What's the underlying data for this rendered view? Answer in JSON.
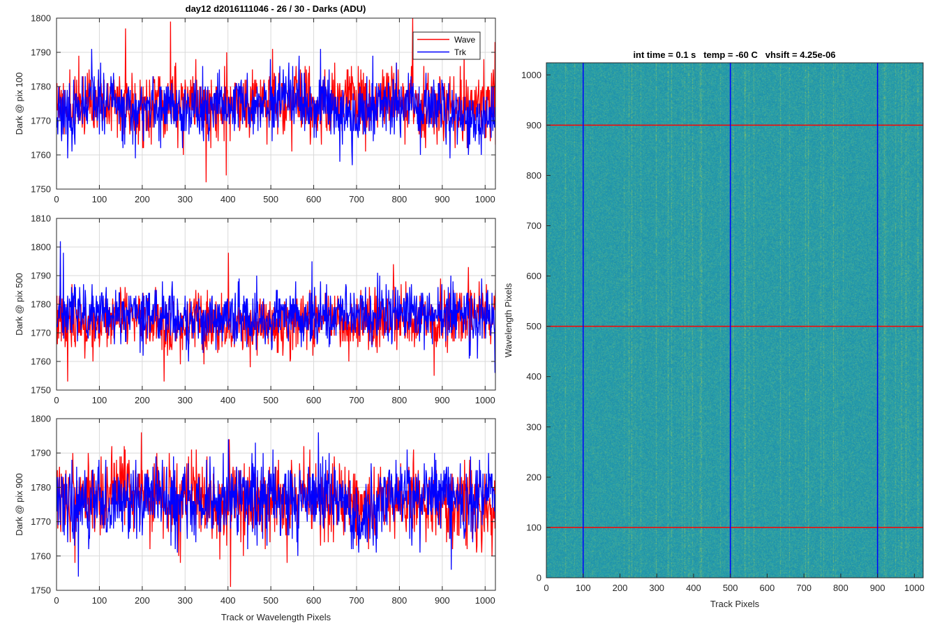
{
  "figure_title": "day12 d2016111046 - 26 / 30 - Darks (ADU)",
  "colors": {
    "wave": "#ff0000",
    "trk": "#0000ff",
    "grid": "#d9d9d9",
    "axis": "#262626",
    "image_base": "#1f9ca8"
  },
  "chart_data": [
    {
      "type": "line",
      "id": "pix100",
      "title": "day12 d2016111046 - 26 / 30 - Darks (ADU)",
      "xlabel": "",
      "ylabel": "Dark @ pix 100",
      "xlim": [
        0,
        1024
      ],
      "ylim": [
        1750,
        1800
      ],
      "xticks": [
        0,
        100,
        200,
        300,
        400,
        500,
        600,
        700,
        800,
        900,
        1000
      ],
      "yticks": [
        1750,
        1760,
        1770,
        1780,
        1790,
        1800
      ],
      "grid": true,
      "legend": {
        "position": "top-right",
        "entries": [
          "Wave",
          "Trk"
        ]
      },
      "series": [
        {
          "name": "Wave",
          "color": "#ff0000",
          "n": 1024,
          "mean": 1775,
          "std": 5,
          "min": 1752,
          "max": 1800,
          "seed": 11,
          "peaks": [
            [
              348,
              1752
            ],
            [
              395,
              1754
            ],
            [
              830,
              1800
            ],
            [
              265,
              1799
            ],
            [
              160,
              1797
            ],
            [
              1022,
              1793
            ]
          ]
        },
        {
          "name": "Trk",
          "color": "#0000ff",
          "n": 1024,
          "mean": 1773,
          "std": 4.5,
          "min": 1756,
          "max": 1792,
          "seed": 23,
          "peaks": [
            [
              615,
              1791
            ],
            [
              565,
              1789
            ],
            [
              660,
              1758
            ],
            [
              960,
              1760
            ],
            [
              848,
              1760
            ],
            [
              1018,
              1780
            ]
          ]
        }
      ]
    },
    {
      "type": "line",
      "id": "pix500",
      "xlabel": "",
      "ylabel": "Dark @ pix 500",
      "xlim": [
        0,
        1024
      ],
      "ylim": [
        1750,
        1810
      ],
      "xticks": [
        0,
        100,
        200,
        300,
        400,
        500,
        600,
        700,
        800,
        900,
        1000
      ],
      "yticks": [
        1750,
        1760,
        1770,
        1780,
        1790,
        1800,
        1810
      ],
      "grid": true,
      "series": [
        {
          "name": "Wave",
          "color": "#ff0000",
          "n": 1024,
          "mean": 1774,
          "std": 5,
          "min": 1753,
          "max": 1798,
          "seed": 37,
          "peaks": [
            [
              25,
              1753
            ],
            [
              250,
              1753
            ],
            [
              400,
              1798
            ],
            [
              880,
              1755
            ],
            [
              785,
              1794
            ]
          ]
        },
        {
          "name": "Trk",
          "color": "#0000ff",
          "n": 1024,
          "mean": 1776,
          "std": 5,
          "min": 1756,
          "max": 1802,
          "seed": 51,
          "peaks": [
            [
              8,
              1802
            ],
            [
              15,
              1798
            ],
            [
              595,
              1795
            ],
            [
              1022,
              1756
            ]
          ]
        }
      ]
    },
    {
      "type": "line",
      "id": "pix900",
      "xlabel": "Track or Wavelength Pixels",
      "ylabel": "Dark @ pix 900",
      "xlim": [
        0,
        1024
      ],
      "ylim": [
        1750,
        1800
      ],
      "xticks": [
        0,
        100,
        200,
        300,
        400,
        500,
        600,
        700,
        800,
        900,
        1000
      ],
      "yticks": [
        1750,
        1760,
        1770,
        1780,
        1790,
        1800
      ],
      "grid": true,
      "series": [
        {
          "name": "Wave",
          "color": "#ff0000",
          "n": 1024,
          "mean": 1776,
          "std": 5.5,
          "min": 1751,
          "max": 1796,
          "seed": 67,
          "peaks": [
            [
              405,
              1751
            ],
            [
              402,
              1794
            ],
            [
              197,
              1796
            ],
            [
              42,
              1758
            ]
          ]
        },
        {
          "name": "Trk",
          "color": "#0000ff",
          "n": 1024,
          "mean": 1776,
          "std": 5.5,
          "min": 1754,
          "max": 1796,
          "seed": 79,
          "peaks": [
            [
              400,
              1794
            ],
            [
              610,
              1796
            ],
            [
              50,
              1754
            ]
          ]
        }
      ]
    },
    {
      "type": "heatmap",
      "id": "dark-frame",
      "title": "int time = 0.1 s   temp = -60 C   vhsift = 4.25e-06",
      "xlabel": "Track Pixels",
      "ylabel": "Wavelength Pixels",
      "xlim": [
        0,
        1024
      ],
      "ylim": [
        0,
        1024
      ],
      "xticks": [
        0,
        100,
        200,
        300,
        400,
        500,
        600,
        700,
        800,
        900,
        1000
      ],
      "yticks": [
        0,
        100,
        200,
        300,
        400,
        500,
        600,
        700,
        800,
        900,
        1000
      ],
      "colormap": "parula",
      "value_range": [
        1750,
        1800
      ],
      "cut_lines": {
        "vertical": {
          "x": [
            100,
            500,
            900
          ],
          "color": "#0000ff"
        },
        "horizontal": {
          "y": [
            100,
            500,
            900
          ],
          "color": "#ff0000"
        }
      }
    }
  ]
}
